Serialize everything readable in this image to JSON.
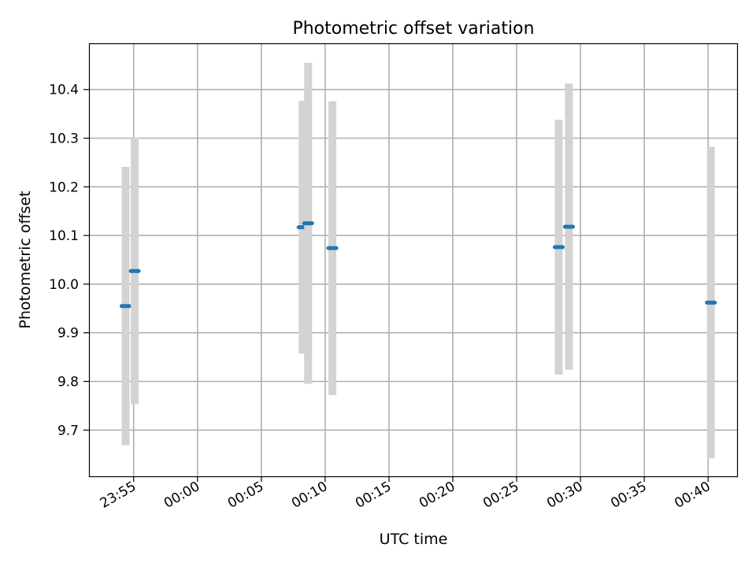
{
  "chart_data": {
    "type": "scatter",
    "title": "Photometric offset variation",
    "xlabel": "UTC time",
    "ylabel": "Photometric offset",
    "x_ticks": [
      "23:55",
      "00:00",
      "00:05",
      "00:10",
      "00:15",
      "00:20",
      "00:25",
      "00:30",
      "00:35",
      "00:40"
    ],
    "y_ticks": [
      "9.7",
      "9.8",
      "9.9",
      "10.0",
      "10.1",
      "10.2",
      "10.3",
      "10.4"
    ],
    "xlim": [
      "23:51:30",
      "00:42:20"
    ],
    "ylim": [
      9.605,
      10.495
    ],
    "grid": true,
    "series": [
      {
        "x": [
          "23:54:22",
          "23:55:05",
          "00:08:14",
          "00:08:40",
          "00:10:34",
          "00:28:18",
          "00:29:06",
          "00:40:13"
        ],
        "y": [
          9.955,
          10.027,
          10.117,
          10.125,
          10.074,
          10.076,
          10.118,
          9.962
        ],
        "y_error": [
          0.286,
          0.274,
          0.26,
          0.33,
          0.302,
          0.262,
          0.294,
          0.32
        ],
        "marker_color": "#1f77b4",
        "error_color": "#d3d3d3"
      }
    ]
  }
}
